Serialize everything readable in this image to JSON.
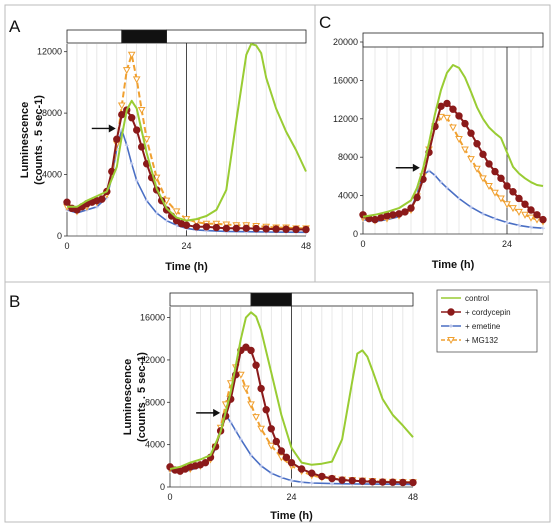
{
  "chart_data": [
    {
      "panel": "A",
      "type": "line",
      "xlabel": "Time (h)",
      "ylabel": [
        "Luminescence",
        "(counts . 5 sec-1)"
      ],
      "xlim": [
        0,
        48
      ],
      "ylim": [
        0,
        12500
      ],
      "xticks": [
        0,
        24,
        48
      ],
      "yticks": [
        0,
        4000,
        8000,
        12000
      ],
      "bar": [
        {
          "from": 0,
          "to": 11,
          "fill": "light"
        },
        {
          "from": 11,
          "to": 20,
          "fill": "dark"
        },
        {
          "from": 20,
          "to": 48,
          "fill": "light"
        }
      ],
      "arrow_at": [
        10.2,
        7000
      ],
      "series": [
        {
          "key": "control",
          "x": [
            0,
            2,
            4,
            6,
            8,
            10,
            11,
            12,
            13,
            14,
            16,
            18,
            20,
            22,
            24,
            26,
            28,
            30,
            32,
            34,
            36,
            37,
            38,
            39,
            40,
            42,
            44,
            46,
            48
          ],
          "y": [
            1900,
            1900,
            2300,
            2600,
            2900,
            4500,
            6500,
            8200,
            8800,
            8300,
            5400,
            3100,
            1800,
            1200,
            1000,
            1100,
            1300,
            1700,
            3000,
            7500,
            11800,
            12500,
            12400,
            11900,
            10300,
            8300,
            6800,
            5600,
            4200
          ]
        },
        {
          "key": "cordycepin",
          "x": [
            0,
            1,
            2,
            3,
            4,
            5,
            6,
            7,
            8,
            9,
            10,
            11,
            12,
            13,
            14,
            15,
            16,
            17,
            18,
            19,
            20,
            21,
            22,
            23,
            24,
            26,
            28,
            30,
            32,
            34,
            36,
            38,
            40,
            42,
            44,
            46,
            48
          ],
          "y": [
            2200,
            1800,
            1700,
            1900,
            2100,
            2200,
            2300,
            2400,
            2900,
            4200,
            6300,
            7900,
            8200,
            7700,
            6900,
            5800,
            4700,
            3800,
            3000,
            2300,
            1700,
            1300,
            1000,
            800,
            700,
            600,
            600,
            550,
            500,
            500,
            500,
            480,
            460,
            450,
            440,
            430,
            420
          ]
        },
        {
          "key": "emetine",
          "x": [
            0,
            2,
            4,
            6,
            8,
            9,
            10,
            11,
            12,
            13,
            14,
            16,
            18,
            20,
            22,
            24,
            26,
            28,
            32,
            36,
            40,
            44,
            48
          ],
          "y": [
            1700,
            1500,
            1700,
            1900,
            2500,
            3800,
            5700,
            6900,
            5900,
            4700,
            3600,
            2300,
            1500,
            1000,
            700,
            500,
            400,
            350,
            300,
            280,
            260,
            250,
            240
          ]
        },
        {
          "key": "mg132",
          "x": [
            0,
            2,
            4,
            6,
            8,
            9,
            10,
            11,
            12,
            13,
            14,
            15,
            16,
            18,
            20,
            22,
            24,
            26,
            28,
            30,
            32,
            34,
            36,
            38,
            40,
            42,
            44,
            46,
            48
          ],
          "y": [
            1900,
            1600,
            1900,
            2200,
            2700,
            4000,
            6000,
            8500,
            10800,
            11800,
            10200,
            8200,
            6300,
            3800,
            2300,
            1600,
            1100,
            900,
            800,
            800,
            750,
            700,
            700,
            650,
            600,
            550,
            550,
            500,
            500
          ]
        }
      ]
    },
    {
      "panel": "B",
      "type": "line",
      "xlabel": "Time (h)",
      "ylabel": [
        "Luminescence",
        "(counts . 5 sec-1)"
      ],
      "xlim": [
        0,
        48
      ],
      "ylim": [
        0,
        17000
      ],
      "xticks": [
        0,
        24,
        48
      ],
      "yticks": [
        0,
        4000,
        8000,
        12000,
        16000
      ],
      "bar": [
        {
          "from": 0,
          "to": 16,
          "fill": "light"
        },
        {
          "from": 16,
          "to": 24,
          "fill": "dark"
        },
        {
          "from": 24,
          "to": 48,
          "fill": "light"
        }
      ],
      "arrow_at": [
        10.3,
        7000
      ],
      "series": [
        {
          "key": "control",
          "x": [
            0,
            2,
            4,
            6,
            8,
            10,
            12,
            14,
            15,
            16,
            17,
            18,
            20,
            22,
            24,
            26,
            28,
            30,
            32,
            34,
            36,
            37,
            38,
            39,
            40,
            42,
            44,
            46,
            48
          ],
          "y": [
            1700,
            1900,
            2300,
            2600,
            3000,
            5200,
            9000,
            14000,
            16000,
            16500,
            16100,
            14800,
            10800,
            6800,
            3700,
            2300,
            2100,
            2200,
            2400,
            4500,
            10000,
            12600,
            12900,
            12300,
            11000,
            8300,
            6800,
            5800,
            4700
          ]
        },
        {
          "key": "cordycepin",
          "x": [
            0,
            1,
            2,
            3,
            4,
            5,
            6,
            7,
            8,
            9,
            10,
            11,
            12,
            13,
            14,
            15,
            16,
            17,
            18,
            19,
            20,
            21,
            22,
            23,
            24,
            26,
            28,
            30,
            32,
            34,
            36,
            38,
            40,
            42,
            44,
            46,
            48
          ],
          "y": [
            1900,
            1600,
            1500,
            1700,
            1900,
            2000,
            2100,
            2300,
            2800,
            3800,
            5300,
            6700,
            8300,
            10600,
            12900,
            13200,
            12900,
            11500,
            9300,
            7300,
            5500,
            4300,
            3400,
            2800,
            2300,
            1700,
            1300,
            1000,
            800,
            650,
            600,
            550,
            500,
            470,
            450,
            430,
            420
          ]
        },
        {
          "key": "emetine",
          "x": [
            0,
            2,
            4,
            6,
            8,
            9,
            10,
            11,
            12,
            13,
            14,
            16,
            18,
            20,
            22,
            24,
            26,
            28,
            32,
            36,
            40,
            44,
            48
          ],
          "y": [
            1500,
            1400,
            1600,
            1900,
            2600,
            3700,
            5600,
            6800,
            6100,
            5300,
            4500,
            3000,
            2000,
            1300,
            900,
            600,
            450,
            380,
            320,
            290,
            270,
            260,
            250
          ]
        },
        {
          "key": "mg132",
          "x": [
            0,
            2,
            4,
            6,
            8,
            9,
            10,
            11,
            12,
            13,
            14,
            15,
            16,
            17,
            18,
            20,
            22,
            24,
            26,
            28,
            30,
            32,
            34,
            36,
            38,
            40,
            42,
            44,
            46,
            48
          ],
          "y": [
            1700,
            1500,
            1700,
            2000,
            2600,
            3800,
            5600,
            7800,
            9800,
            11300,
            10600,
            9300,
            7800,
            6600,
            5500,
            3900,
            2800,
            2000,
            1500,
            1100,
            900,
            800,
            700,
            650,
            600,
            550,
            500,
            480,
            460,
            450
          ]
        }
      ]
    },
    {
      "panel": "C",
      "type": "line",
      "xlabel": "Time (h)",
      "xlim": [
        0,
        30
      ],
      "ylim": [
        0,
        20000
      ],
      "xticks": [
        0,
        24
      ],
      "yticks": [
        0,
        4000,
        8000,
        12000,
        16000,
        20000
      ],
      "bar": [
        {
          "from": 0,
          "to": 30,
          "fill": "light"
        }
      ],
      "arrow_at": [
        9.8,
        6900
      ],
      "series": [
        {
          "key": "control",
          "x": [
            0,
            2,
            4,
            6,
            8,
            9,
            10,
            11,
            12,
            13,
            14,
            15,
            16,
            17,
            18,
            19,
            20,
            21,
            22,
            23,
            24,
            25,
            26,
            27,
            28,
            29,
            30
          ],
          "y": [
            1800,
            2000,
            2300,
            2700,
            3500,
            4800,
            6800,
            9500,
            12500,
            15000,
            16800,
            17600,
            17300,
            16300,
            14800,
            13200,
            12000,
            11100,
            10500,
            10000,
            8500,
            7000,
            6300,
            5800,
            5400,
            5100,
            5000
          ]
        },
        {
          "key": "cordycepin",
          "x": [
            0,
            1,
            2,
            3,
            4,
            5,
            6,
            7,
            8,
            9,
            10,
            11,
            12,
            13,
            14,
            15,
            16,
            17,
            18,
            19,
            20,
            21,
            22,
            23,
            24,
            25,
            26,
            27,
            28,
            29,
            30
          ],
          "y": [
            2000,
            1600,
            1500,
            1700,
            1900,
            2000,
            2100,
            2300,
            2700,
            3800,
            5700,
            8500,
            11200,
            13300,
            13600,
            13000,
            12300,
            11500,
            10500,
            9400,
            8300,
            7300,
            6500,
            5800,
            5000,
            4400,
            3700,
            3100,
            2500,
            2000,
            1500
          ]
        },
        {
          "key": "emetine",
          "x": [
            0,
            2,
            4,
            6,
            8,
            9,
            10,
            11,
            12,
            13,
            14,
            16,
            18,
            20,
            22,
            24,
            26,
            28,
            30
          ],
          "y": [
            1500,
            1300,
            1500,
            1800,
            2600,
            4200,
            6100,
            6600,
            6100,
            5400,
            4800,
            3700,
            2800,
            2100,
            1600,
            1200,
            900,
            700,
            600
          ]
        },
        {
          "key": "mg132",
          "x": [
            0,
            2,
            4,
            6,
            8,
            9,
            10,
            11,
            12,
            13,
            14,
            15,
            16,
            17,
            18,
            19,
            20,
            21,
            22,
            23,
            24,
            25,
            26,
            27,
            28,
            29,
            30
          ],
          "y": [
            1700,
            1400,
            1600,
            1900,
            2500,
            3900,
            6000,
            8800,
            11200,
            12200,
            12100,
            11100,
            9900,
            8800,
            7800,
            6800,
            5800,
            5000,
            4300,
            3700,
            3100,
            2700,
            2300,
            2000,
            1700,
            1500,
            1300
          ]
        }
      ]
    }
  ],
  "legend": [
    {
      "key": "control",
      "label": "control"
    },
    {
      "key": "cordycepin",
      "label": "+ cordycepin"
    },
    {
      "key": "emetine",
      "label": "+ emetine"
    },
    {
      "key": "mg132",
      "label": "+ MG132"
    }
  ],
  "colors": {
    "control": "#99cc33",
    "cordycepin": "#8b1a1a",
    "emetine": "#4a6fc4",
    "mg132": "#f0a030",
    "grid": "#d9d9d9",
    "dark_bar": "#111111"
  }
}
